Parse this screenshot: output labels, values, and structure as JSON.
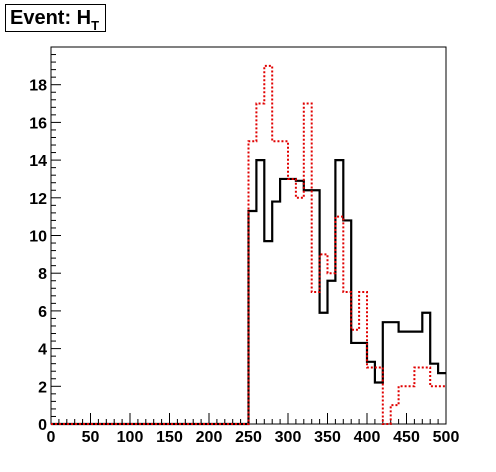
{
  "title": {
    "main": "Event: H",
    "subscript": "T"
  },
  "chart_data": {
    "type": "line",
    "step": true,
    "title": "Event: H_T",
    "xlabel": "",
    "ylabel": "",
    "xlim": [
      0,
      500
    ],
    "ylim": [
      0,
      20
    ],
    "xticks": [
      0,
      50,
      100,
      150,
      200,
      250,
      300,
      350,
      400,
      450,
      500
    ],
    "xtick_labels": [
      "0",
      "50",
      "100",
      "150",
      "200",
      "250",
      "300",
      "350",
      "400",
      "450",
      "500"
    ],
    "yticks": [
      0,
      2,
      4,
      6,
      8,
      10,
      12,
      14,
      16,
      18
    ],
    "ytick_labels": [
      "0",
      "2",
      "4",
      "6",
      "8",
      "10",
      "12",
      "14",
      "16",
      "18"
    ],
    "grid": false,
    "legend": "none",
    "bin_edges": [
      0,
      10,
      20,
      30,
      40,
      50,
      60,
      70,
      80,
      90,
      100,
      110,
      120,
      130,
      140,
      150,
      160,
      170,
      180,
      190,
      200,
      210,
      220,
      230,
      240,
      250,
      260,
      270,
      280,
      290,
      300,
      310,
      320,
      330,
      340,
      350,
      360,
      370,
      380,
      390,
      400,
      410,
      420,
      430,
      440,
      450,
      460,
      470,
      480,
      490,
      500
    ],
    "series": [
      {
        "color": "#000000",
        "line_style": "solid",
        "values": [
          0,
          0,
          0,
          0,
          0,
          0,
          0,
          0,
          0,
          0,
          0,
          0,
          0,
          0,
          0,
          0,
          0,
          0,
          0,
          0,
          0,
          0,
          0,
          0,
          0,
          11.3,
          14,
          9.7,
          11.8,
          13,
          13,
          12.9,
          12.4,
          12.4,
          5.9,
          7.6,
          14,
          10.8,
          4.3,
          4.3,
          3.3,
          2.2,
          5.4,
          5.4,
          4.9,
          4.9,
          4.9,
          5.9,
          3.2,
          2.7
        ]
      },
      {
        "color": "#e00000",
        "line_style": "dashed",
        "values": [
          0,
          0,
          0,
          0,
          0,
          0,
          0,
          0,
          0,
          0,
          0,
          0,
          0,
          0,
          0,
          0,
          0,
          0,
          0,
          0,
          0,
          0,
          0,
          0,
          0,
          15,
          17,
          19,
          15,
          15,
          13,
          12,
          17,
          7,
          9,
          8,
          11,
          7,
          5,
          7,
          3,
          3,
          0,
          1,
          2,
          2,
          3,
          3,
          2,
          2
        ]
      }
    ]
  }
}
